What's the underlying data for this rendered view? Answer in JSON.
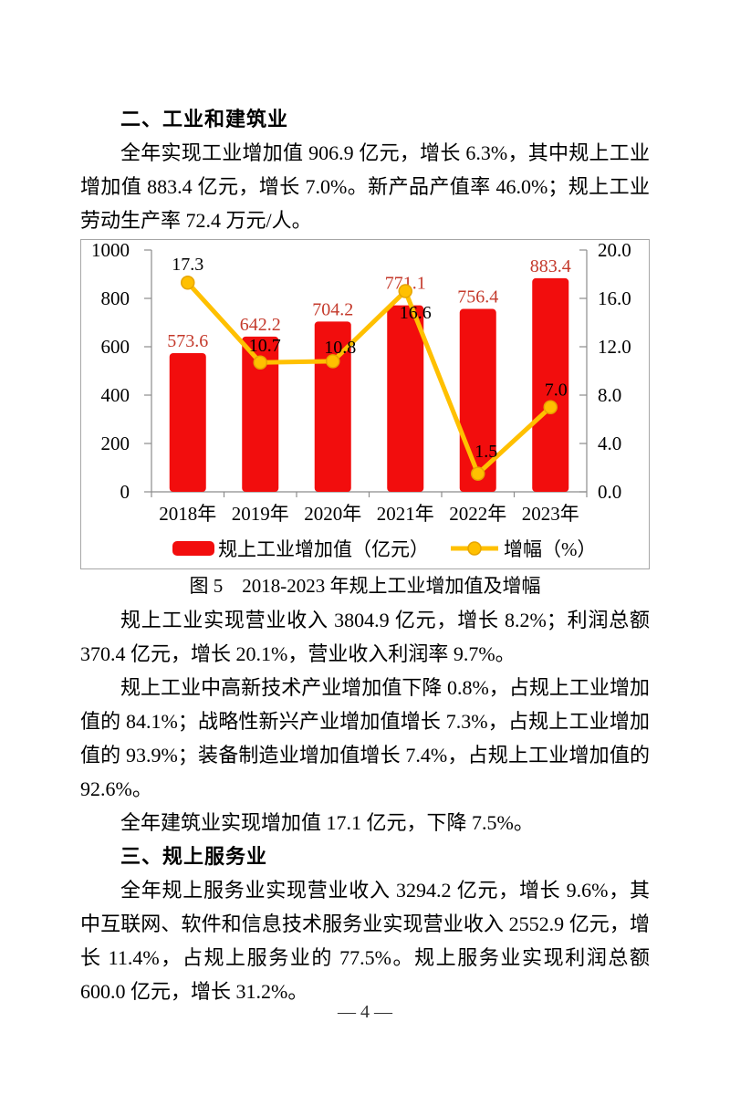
{
  "page": {
    "footer": "— 4 —"
  },
  "sections": {
    "heading_industry": "二、工业和建筑业",
    "para_industry": "全年实现工业增加值 906.9 亿元，增长 6.3%，其中规上工业增加值 883.4 亿元，增长 7.0%。新产品产值率 46.0%；规上工业劳动生产率 72.4 万元/人。",
    "figure_caption": "图 5　2018-2023 年规上工业增加值及增幅",
    "para_revenue": "规上工业实现营业收入 3804.9 亿元，增长 8.2%；利润总额 370.4 亿元，增长 20.1%，营业收入利润率 9.7%。",
    "para_hightech": "规上工业中高新技术产业增加值下降 0.8%，占规上工业增加值的 84.1%；战略性新兴产业增加值增长 7.3%，占规上工业增加值的 93.9%；装备制造业增加值增长 7.4%，占规上工业增加值的 92.6%。",
    "para_construction": "全年建筑业实现增加值 17.1 亿元，下降 7.5%。",
    "heading_services": "三、规上服务业",
    "para_services": "全年规上服务业实现营业收入 3294.2 亿元，增长 9.6%，其中互联网、软件和信息技术服务业实现营业收入 2552.9 亿元，增长 11.4%，占规上服务业的 77.5%。规上服务业实现利润总额 600.0 亿元，增长 31.2%。"
  },
  "chart_data": {
    "type": "bar",
    "subtype": "bar+line combo, dual axis",
    "title": "图 5　2018-2023 年规上工业增加值及增幅",
    "categories": [
      "2018年",
      "2019年",
      "2020年",
      "2021年",
      "2022年",
      "2023年"
    ],
    "series": [
      {
        "name": "规上工业增加值（亿元）",
        "type": "bar",
        "axis": "left",
        "values": [
          573.6,
          642.2,
          704.2,
          771.1,
          756.4,
          883.4
        ],
        "color": "#f20d0d",
        "label_color": "#c4392b"
      },
      {
        "name": "增幅（%）",
        "type": "line",
        "axis": "right",
        "values": [
          17.3,
          10.7,
          10.8,
          16.6,
          1.5,
          7.0
        ],
        "color": "#ffc000",
        "marker_stroke": "#e6a400",
        "label_color": "#000000"
      }
    ],
    "left_axis": {
      "min": 0,
      "max": 1000,
      "step": 200,
      "ticks": [
        "1000",
        "800",
        "600",
        "400",
        "200",
        "0"
      ]
    },
    "right_axis": {
      "min": 0,
      "max": 20,
      "step": 4,
      "ticks": [
        "20.0",
        "16.0",
        "12.0",
        "8.0",
        "4.0",
        "0.0"
      ]
    },
    "grid": false,
    "legend_position": "bottom",
    "axis_color": "#8c8c8c",
    "text_color": "#000000"
  }
}
